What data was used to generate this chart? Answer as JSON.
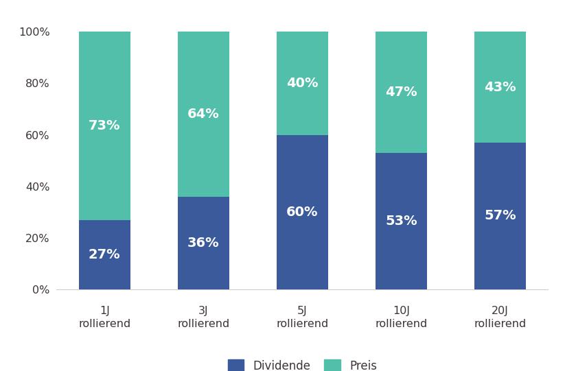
{
  "categories_line1": [
    "1J",
    "3J",
    "5J",
    "10J",
    "20J"
  ],
  "categories_line2": [
    "rollierend",
    "rollierend",
    "rollierend",
    "rollierend",
    "rollierend"
  ],
  "dividende_values": [
    27,
    36,
    60,
    53,
    57
  ],
  "preis_values": [
    73,
    64,
    40,
    47,
    43
  ],
  "dividende_color": "#3a5a9b",
  "preis_color": "#52bfaa",
  "background_color": "#ffffff",
  "bar_width": 0.52,
  "ylim": [
    0,
    108
  ],
  "yticks": [
    0,
    20,
    40,
    60,
    80,
    100
  ],
  "ytick_labels": [
    "0%",
    "20%",
    "40%",
    "60%",
    "80%",
    "100%"
  ],
  "legend_labels": [
    "Dividende",
    "Preis"
  ],
  "tick_fontsize": 11.5,
  "legend_fontsize": 12,
  "annotation_fontsize": 14,
  "text_color": "#3d3535",
  "axis_color": "#cccccc"
}
